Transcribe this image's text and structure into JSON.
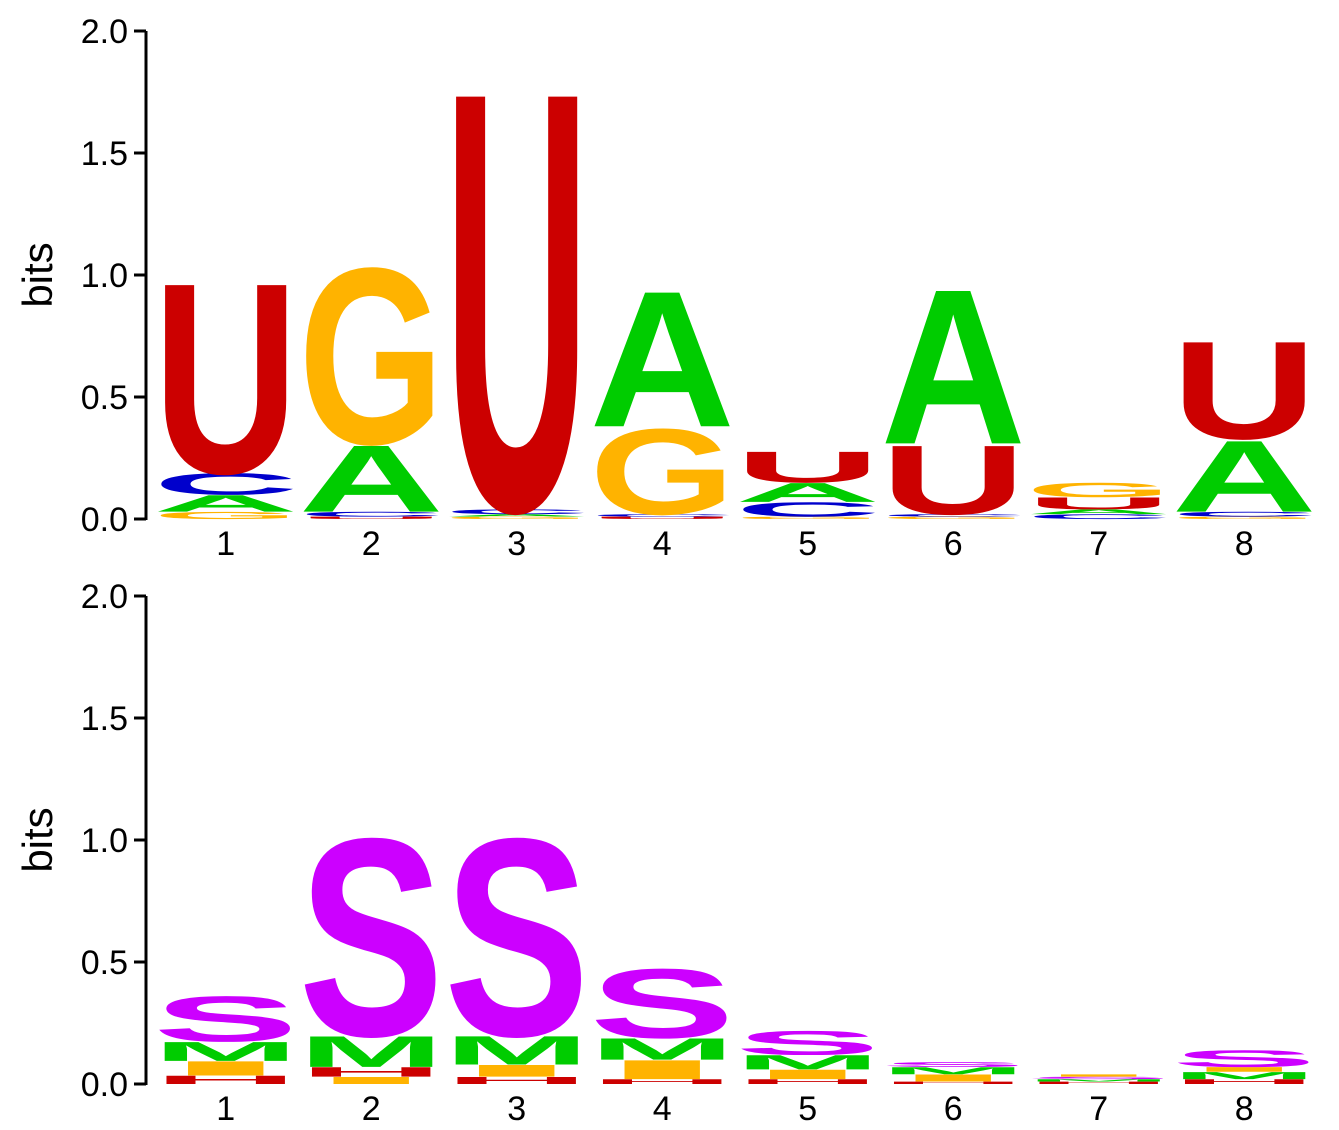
{
  "chart_data": [
    {
      "type": "sequence-logo",
      "ylabel": "bits",
      "ylim": [
        0,
        2.0
      ],
      "yticks": [
        "0.0",
        "0.5",
        "1.0",
        "1.5",
        "2.0"
      ],
      "positions": [
        "1",
        "2",
        "3",
        "4",
        "5",
        "6",
        "7",
        "8"
      ],
      "colors": {
        "A": "#00cc00",
        "C": "#0000cc",
        "G": "#ffb300",
        "U": "#cc0000"
      },
      "stacks": [
        [
          {
            "letter": "G",
            "bits": 0.03
          },
          {
            "letter": "A",
            "bits": 0.07
          },
          {
            "letter": "C",
            "bits": 0.09
          },
          {
            "letter": "U",
            "bits": 0.8
          }
        ],
        [
          {
            "letter": "U",
            "bits": 0.01
          },
          {
            "letter": "C",
            "bits": 0.02
          },
          {
            "letter": "A",
            "bits": 0.28
          },
          {
            "letter": "G",
            "bits": 0.74
          }
        ],
        [
          {
            "letter": "G",
            "bits": 0.01
          },
          {
            "letter": "A",
            "bits": 0.01
          },
          {
            "letter": "C",
            "bits": 0.02
          },
          {
            "letter": "U",
            "bits": 1.76
          }
        ],
        [
          {
            "letter": "U",
            "bits": 0.01
          },
          {
            "letter": "C",
            "bits": 0.01
          },
          {
            "letter": "G",
            "bits": 0.36
          },
          {
            "letter": "A",
            "bits": 0.57
          }
        ],
        [
          {
            "letter": "G",
            "bits": 0.01
          },
          {
            "letter": "C",
            "bits": 0.06
          },
          {
            "letter": "A",
            "bits": 0.08
          },
          {
            "letter": "U",
            "bits": 0.13
          }
        ],
        [
          {
            "letter": "G",
            "bits": 0.01
          },
          {
            "letter": "C",
            "bits": 0.01
          },
          {
            "letter": "U",
            "bits": 0.29
          },
          {
            "letter": "A",
            "bits": 0.65
          }
        ],
        [
          {
            "letter": "C",
            "bits": 0.02
          },
          {
            "letter": "A",
            "bits": 0.02
          },
          {
            "letter": "U",
            "bits": 0.05
          },
          {
            "letter": "G",
            "bits": 0.06
          }
        ],
        [
          {
            "letter": "G",
            "bits": 0.01
          },
          {
            "letter": "C",
            "bits": 0.02
          },
          {
            "letter": "A",
            "bits": 0.3
          },
          {
            "letter": "U",
            "bits": 0.41
          }
        ]
      ]
    },
    {
      "type": "sequence-logo",
      "ylabel": "bits",
      "ylim": [
        0,
        2.0
      ],
      "yticks": [
        "0.0",
        "0.5",
        "1.0",
        "1.5",
        "2.0"
      ],
      "positions": [
        "1",
        "2",
        "3",
        "4",
        "5",
        "6",
        "7",
        "8"
      ],
      "colors": {
        "S": "#cc00ff",
        "M": "#00cc00",
        "I": "#ffb300",
        "H": "#cc0000"
      },
      "stacks": [
        [
          {
            "letter": "H",
            "bits": 0.035
          },
          {
            "letter": "I",
            "bits": 0.06
          },
          {
            "letter": "M",
            "bits": 0.08
          },
          {
            "letter": "S",
            "bits": 0.19
          }
        ],
        [
          {
            "letter": "I",
            "bits": 0.03
          },
          {
            "letter": "H",
            "bits": 0.04
          },
          {
            "letter": "M",
            "bits": 0.13
          },
          {
            "letter": "S",
            "bits": 0.83
          }
        ],
        [
          {
            "letter": "H",
            "bits": 0.03
          },
          {
            "letter": "I",
            "bits": 0.05
          },
          {
            "letter": "M",
            "bits": 0.12
          },
          {
            "letter": "S",
            "bits": 0.83
          }
        ],
        [
          {
            "letter": "H",
            "bits": 0.02
          },
          {
            "letter": "I",
            "bits": 0.08
          },
          {
            "letter": "M",
            "bits": 0.09
          },
          {
            "letter": "S",
            "bits": 0.29
          }
        ],
        [
          {
            "letter": "H",
            "bits": 0.02
          },
          {
            "letter": "I",
            "bits": 0.04
          },
          {
            "letter": "M",
            "bits": 0.06
          },
          {
            "letter": "S",
            "bits": 0.1
          }
        ],
        [
          {
            "letter": "H",
            "bits": 0.01
          },
          {
            "letter": "I",
            "bits": 0.03
          },
          {
            "letter": "M",
            "bits": 0.03
          },
          {
            "letter": "S",
            "bits": 0.02
          }
        ],
        [
          {
            "letter": "H",
            "bits": 0.01
          },
          {
            "letter": "M",
            "bits": 0.01
          },
          {
            "letter": "S",
            "bits": 0.01
          },
          {
            "letter": "I",
            "bits": 0.01
          }
        ],
        [
          {
            "letter": "H",
            "bits": 0.02
          },
          {
            "letter": "M",
            "bits": 0.03
          },
          {
            "letter": "I",
            "bits": 0.02
          },
          {
            "letter": "S",
            "bits": 0.07
          }
        ]
      ]
    }
  ]
}
